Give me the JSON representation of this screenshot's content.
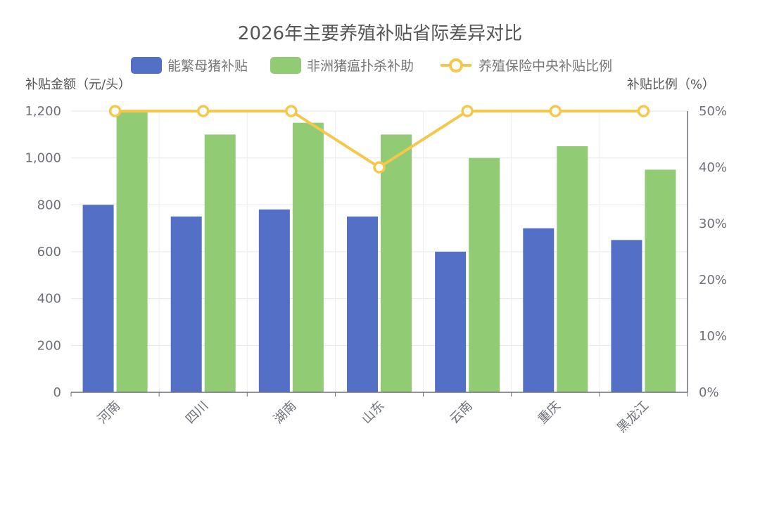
{
  "chart_data": {
    "type": "bar",
    "title": "2026年主要养殖补贴省际差异对比",
    "categories": [
      "河南",
      "四川",
      "湖南",
      "山东",
      "云南",
      "重庆",
      "黑龙江"
    ],
    "series": [
      {
        "name": "能繁母猪补贴",
        "type": "bar",
        "axis": "left",
        "color": "#5470c6",
        "values": [
          800,
          750,
          780,
          750,
          600,
          700,
          650
        ]
      },
      {
        "name": "非洲猪瘟扑杀补助",
        "type": "bar",
        "axis": "left",
        "color": "#91cc75",
        "values": [
          1200,
          1100,
          1150,
          1100,
          1000,
          1050,
          950
        ]
      },
      {
        "name": "养殖保险中央补贴比例",
        "type": "line",
        "axis": "right",
        "color": "#f5c84c",
        "values": [
          50,
          50,
          50,
          40,
          50,
          50,
          50
        ]
      }
    ],
    "y_left": {
      "label": "补贴金额（元/头）",
      "range": [
        0,
        1200
      ],
      "ticks": [
        "0",
        "200",
        "400",
        "600",
        "800",
        "1,000",
        "1,200"
      ]
    },
    "y_right": {
      "label": "补贴比例（%）",
      "range": [
        0,
        50
      ],
      "ticks": [
        "0%",
        "10%",
        "20%",
        "30%",
        "40%",
        "50%"
      ]
    },
    "grid": true,
    "legend_position": "top-center"
  }
}
